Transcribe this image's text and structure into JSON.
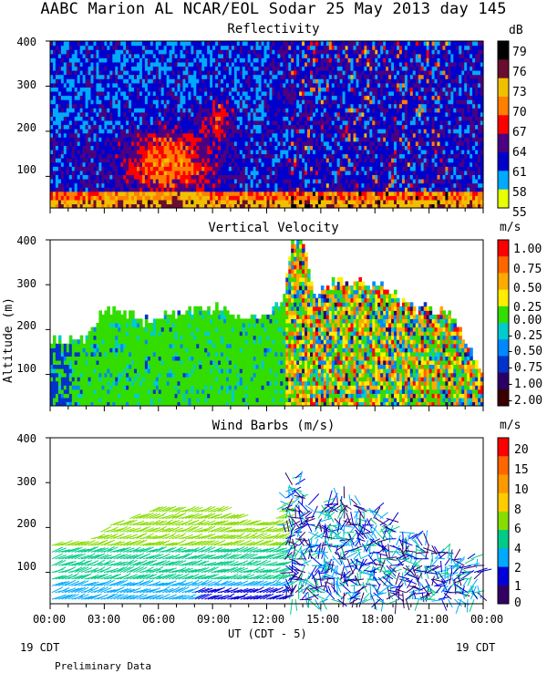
{
  "header": {
    "title": "AABC Marion AL NCAR/EOL Sodar  25 May 2013 day 145"
  },
  "x_axis": {
    "tick_labels": [
      "00:00",
      "03:00",
      "06:00",
      "09:00",
      "12:00",
      "15:00",
      "18:00",
      "21:00",
      "00:00"
    ],
    "xlabel": "UT  (CDT - 5)",
    "left_date": "19 CDT",
    "right_date": "19 CDT"
  },
  "footer": {
    "note": "Preliminary Data"
  },
  "chart_data": [
    {
      "type": "heatmap",
      "title": "Reflectivity",
      "units": "dB",
      "ylabel": "",
      "y_ticks": [
        "400",
        "300",
        "200",
        "100"
      ],
      "ylim": [
        30,
        400
      ],
      "xlim_hours": [
        0,
        24
      ],
      "colorbar": {
        "labels": [
          "79",
          "76",
          "73",
          "70",
          "67",
          "64",
          "61",
          "58",
          "55"
        ],
        "colors": [
          "#000000",
          "#6a0d2f",
          "#f0c000",
          "#ff8000",
          "#ff0000",
          "#4b0082",
          "#0000cd",
          "#00aaff",
          "#e8ff00"
        ]
      },
      "top_height_m": 400
    },
    {
      "type": "heatmap",
      "title": "Vertical Velocity",
      "units": "m/s",
      "ylabel": "Altitude (m)",
      "y_ticks": [
        "400",
        "300",
        "200",
        "100"
      ],
      "ylim": [
        30,
        400
      ],
      "xlim_hours": [
        0,
        24
      ],
      "colorbar": {
        "labels": [
          "1.00",
          "0.75",
          "0.50",
          "0.25",
          "0.00",
          "-0.25",
          "-0.50",
          "-0.75",
          "-1.00",
          "-2.00"
        ],
        "colors": [
          "#ff0000",
          "#ff6600",
          "#ffaa00",
          "#ffee00",
          "#33dd00",
          "#00cccc",
          "#0088ff",
          "#0033cc",
          "#2b0066",
          "#3a0000"
        ]
      },
      "top_height_by_hour": [
        [
          0,
          175
        ],
        [
          2,
          180
        ],
        [
          3,
          250
        ],
        [
          5,
          220
        ],
        [
          7,
          240
        ],
        [
          9,
          250
        ],
        [
          11,
          220
        ],
        [
          12.8,
          260
        ],
        [
          13.4,
          400
        ],
        [
          14,
          400
        ],
        [
          14.5,
          280
        ],
        [
          16,
          310
        ],
        [
          18,
          300
        ],
        [
          20,
          250
        ],
        [
          22,
          240
        ],
        [
          23,
          175
        ],
        [
          24,
          100
        ]
      ]
    },
    {
      "type": "scatter",
      "title": "Wind Barbs (m/s)",
      "units": "m/s",
      "ylabel": "",
      "y_ticks": [
        "400",
        "300",
        "200",
        "100"
      ],
      "ylim": [
        30,
        400
      ],
      "xlim_hours": [
        0,
        24
      ],
      "colorbar": {
        "labels": [
          "20",
          "15",
          "10",
          "8",
          "6",
          "4",
          "2",
          "1",
          "0"
        ],
        "colors": [
          "#ff0000",
          "#ff6600",
          "#ff9900",
          "#ffcc00",
          "#88dd00",
          "#00cc88",
          "#00aaff",
          "#0000dd",
          "#330066"
        ]
      },
      "top_height_by_hour": [
        [
          0,
          160
        ],
        [
          2,
          170
        ],
        [
          3,
          200
        ],
        [
          5,
          230
        ],
        [
          7,
          250
        ],
        [
          9,
          245
        ],
        [
          11,
          210
        ],
        [
          12.5,
          220
        ],
        [
          13.5,
          330
        ],
        [
          14.5,
          240
        ],
        [
          16,
          270
        ],
        [
          18,
          240
        ],
        [
          20,
          180
        ],
        [
          22,
          150
        ],
        [
          23.5,
          130
        ]
      ]
    }
  ]
}
